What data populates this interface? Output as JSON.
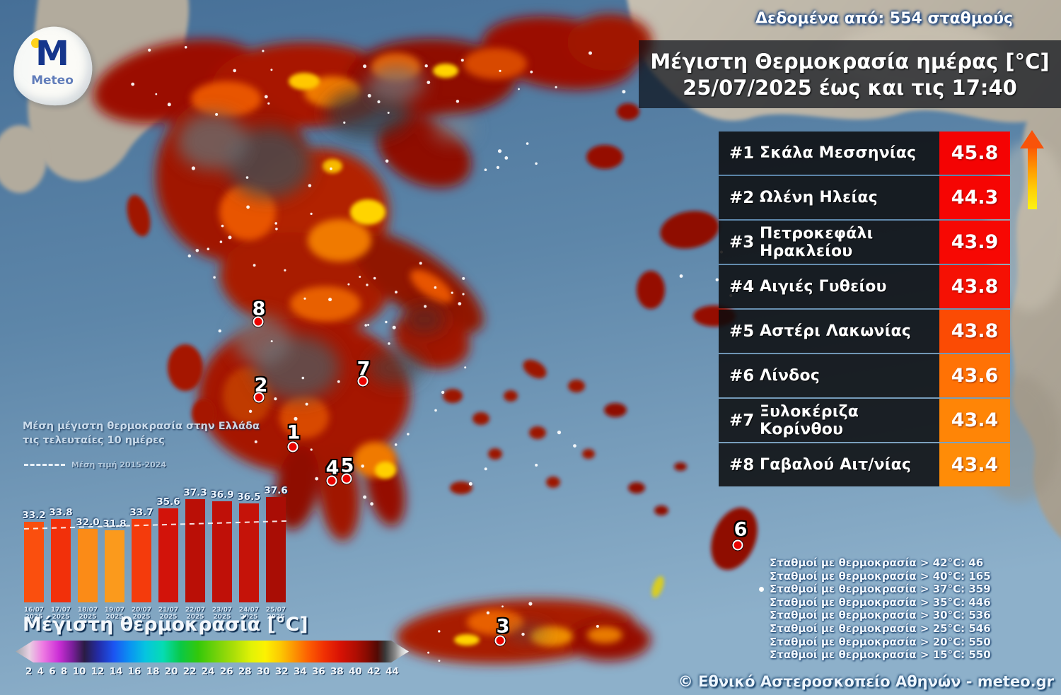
{
  "logo": {
    "brand": "Meteo",
    "monogram": "M"
  },
  "header": {
    "data_source": "Δεδομένα από: 554 σταθμούς",
    "title_line1": "Μέγιστη Θερμοκρασία ημέρας [°C]",
    "title_line2": "25/07/2025 έως και τις 17:40"
  },
  "ranking": {
    "rows": [
      {
        "rank": "#1",
        "station": "Σκάλα Μεσσηνίας",
        "value": "45.8",
        "value_color": "#f40303"
      },
      {
        "rank": "#2",
        "station": "Ωλένη Ηλείας",
        "value": "44.3",
        "value_color": "#f60503"
      },
      {
        "rank": "#3",
        "station": "Πετροκεφάλι Ηρακλείου",
        "value": "43.9",
        "value_color": "#f70803"
      },
      {
        "rank": "#4",
        "station": "Αιγιές Γυθείου",
        "value": "43.8",
        "value_color": "#f51104"
      },
      {
        "rank": "#5",
        "station": "Αστέρι Λακωνίας",
        "value": "43.8",
        "value_color": "#fb4b04"
      },
      {
        "rank": "#6",
        "station": "Λίνδος",
        "value": "43.6",
        "value_color": "#ff7205"
      },
      {
        "rank": "#7",
        "station": "Ξυλοκέριζα Κορίνθου",
        "value": "43.4",
        "value_color": "#ff8506"
      },
      {
        "rank": "#8",
        "station": "Γαβαλού Αιτ/νίας",
        "value": "43.4",
        "value_color": "#ff8c07"
      }
    ]
  },
  "chart_data": {
    "type": "bar",
    "title": "Μέση μέγιστη θερμοκρασία στην Ελλάδα τις τελευταίες 10 ημέρες",
    "title_line1": "Μέση μέγιστη θερμοκρασία στην Ελλάδα",
    "title_line2": "τις τελευταίες 10 ημέρες",
    "avg_line_label": "Μέση τιμή 2015-2024",
    "categories": [
      "16/07",
      "17/07",
      "18/07",
      "19/07",
      "20/07",
      "21/07",
      "22/07",
      "23/07",
      "24/07",
      "25/07"
    ],
    "year": "2025",
    "values": [
      33.2,
      33.8,
      32.0,
      31.8,
      33.7,
      35.6,
      37.3,
      36.9,
      36.5,
      37.6
    ],
    "value_labels": [
      "33.2",
      "33.8",
      "32.0",
      "31.8",
      "33.7",
      "35.6",
      "37.3",
      "36.9",
      "36.5",
      "37.6"
    ],
    "bar_colors": [
      "#fa4f0e",
      "#f2300a",
      "#fb8b17",
      "#fb9a1c",
      "#f43b0c",
      "#d2130a",
      "#ba0f06",
      "#bf1008",
      "#c51309",
      "#a90d05"
    ],
    "avg_line": {
      "start": 32.0,
      "end": 33.4
    },
    "ylim": [
      19,
      40
    ],
    "xlabel": "",
    "ylabel": ""
  },
  "colorbar": {
    "title": "Μέγιστη θερμοκρασία [°C]",
    "ticks": [
      "2",
      "4",
      "6",
      "8",
      "10",
      "12",
      "14",
      "16",
      "18",
      "20",
      "22",
      "24",
      "26",
      "28",
      "30",
      "32",
      "34",
      "36",
      "38",
      "40",
      "42",
      "44"
    ]
  },
  "stats": {
    "lines": [
      {
        "bullet": false,
        "text": "Σταθμοί με θερμοκρασία > 42°C: 46"
      },
      {
        "bullet": false,
        "text": "Σταθμοί με θερμοκρασία > 40°C: 165"
      },
      {
        "bullet": true,
        "text": "Σταθμοί με θερμοκρασία > 37°C: 359"
      },
      {
        "bullet": false,
        "text": "Σταθμοί με θερμοκρασία > 35°C: 446"
      },
      {
        "bullet": false,
        "text": "Σταθμοί με θερμοκρασία > 30°C: 536"
      },
      {
        "bullet": false,
        "text": "Σταθμοί με θερμοκρασία > 25°C: 546"
      },
      {
        "bullet": false,
        "text": "Σταθμοί με θερμοκρασία > 20°C: 550"
      },
      {
        "bullet": false,
        "text": "Σταθμοί με θερμοκρασία > 15°C: 550"
      }
    ]
  },
  "markers": [
    {
      "label": "1"
    },
    {
      "label": "2"
    },
    {
      "label": "3"
    },
    {
      "label": "4"
    },
    {
      "label": "5"
    },
    {
      "label": "6"
    },
    {
      "label": "7"
    },
    {
      "label": "8"
    }
  ],
  "trend_arrow": {
    "direction": "up"
  },
  "copyright": "© Εθνικό Αστεροσκοπείο Αθηνών - meteo.gr"
}
